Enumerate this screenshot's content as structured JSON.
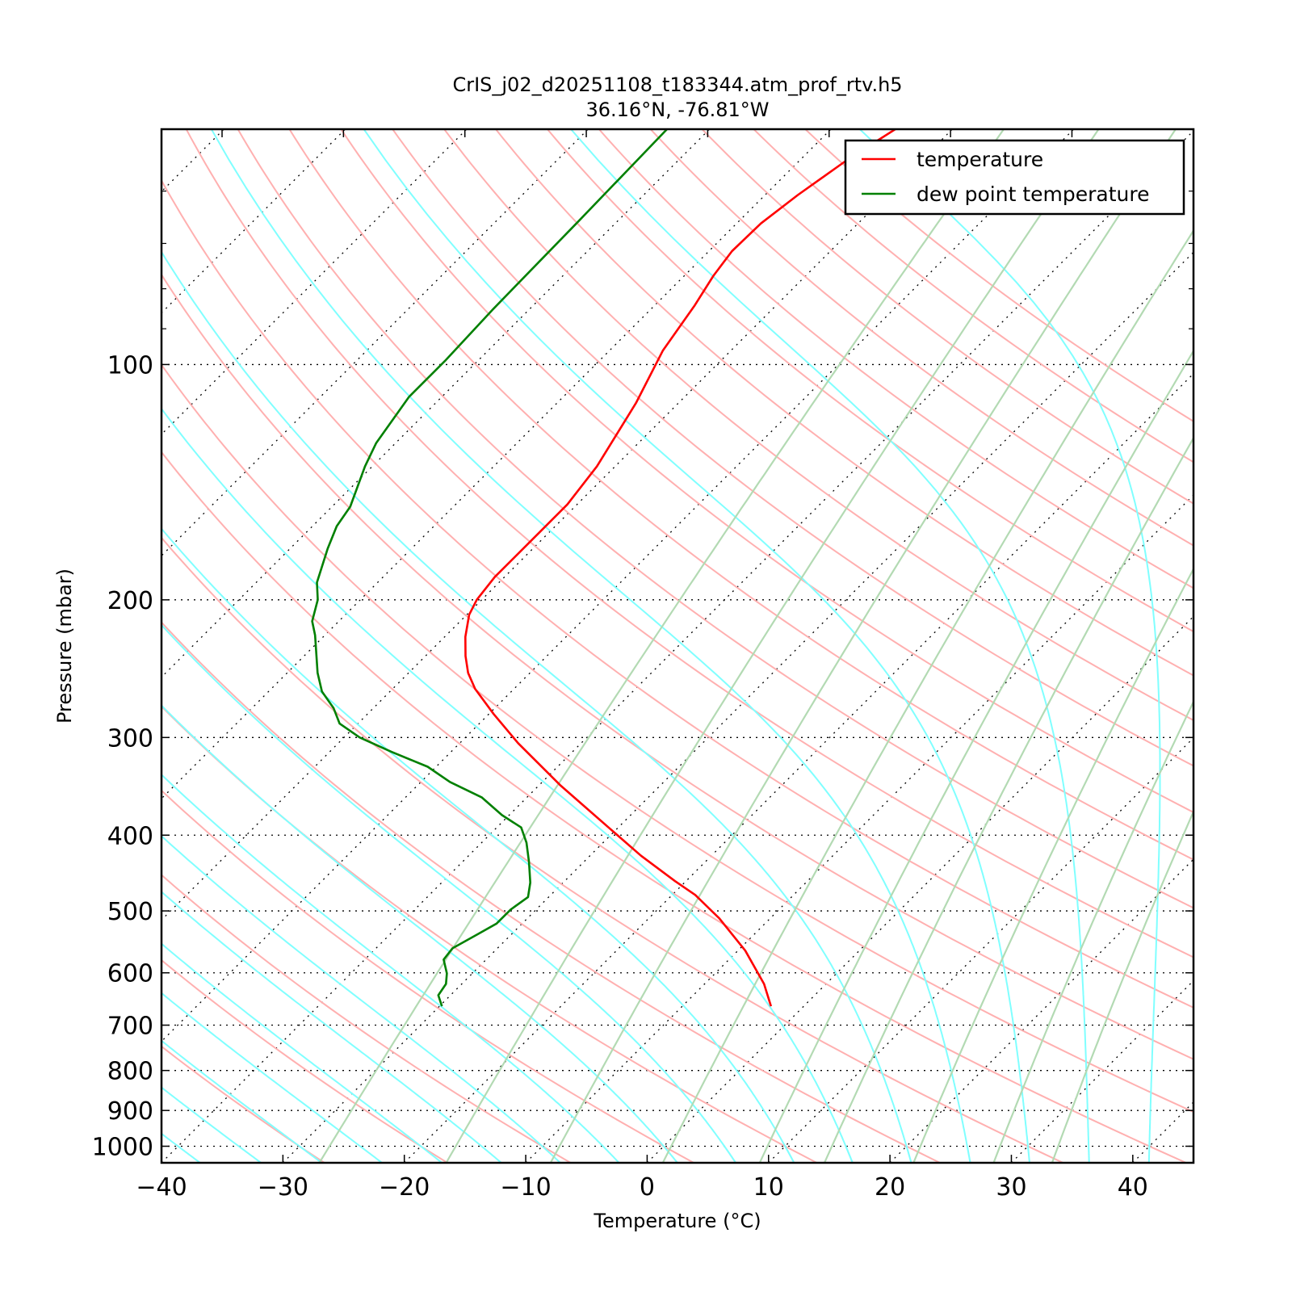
{
  "chart_data": {
    "type": "line",
    "subtype": "skew-t log-p diagram",
    "title": "CrIS_j02_d20251108_t183344.atm_prof_rtv.h5",
    "subtitle": "36.16°N, -76.81°W",
    "xlabel": "Temperature (°C)",
    "ylabel": "Pressure (mbar)",
    "xlim": [
      -40,
      45
    ],
    "ylim": [
      1050,
      50
    ],
    "yscale": "log",
    "skew_deg": 45,
    "x_ticks": [
      -40,
      -30,
      -20,
      -10,
      0,
      10,
      20,
      30,
      40
    ],
    "x_tick_labels": [
      "−40",
      "−30",
      "−20",
      "−10",
      "0",
      "10",
      "20",
      "30",
      "40"
    ],
    "y_ticks": [
      100,
      200,
      300,
      400,
      500,
      600,
      700,
      800,
      900,
      1000
    ],
    "y_tick_labels": [
      "100",
      "200",
      "300",
      "400",
      "500",
      "600",
      "700",
      "800",
      "900",
      "1000"
    ],
    "y_minor_ticks": [
      60,
      70,
      80,
      90
    ],
    "legend": {
      "placement": "top-right",
      "entries": [
        {
          "label": "temperature",
          "color": "#ff0000"
        },
        {
          "label": "dew point temperature",
          "color": "#008000"
        }
      ]
    },
    "series": [
      {
        "name": "temperature",
        "color": "#ff0000",
        "pressure": [
          662,
          620,
          562,
          511,
          477,
          458,
          425,
          391,
          345,
          305,
          280,
          260,
          248,
          236,
          223,
          209,
          200,
          187,
          164,
          151,
          135,
          112,
          96,
          84,
          77,
          71.6,
          66,
          60.7,
          54.6,
          49.7
        ],
        "values": [
          -2.7,
          -5.1,
          -9.4,
          -14.2,
          -18.1,
          -20.9,
          -25.8,
          -30.8,
          -38.3,
          -45.2,
          -49.6,
          -53.2,
          -55.1,
          -56.7,
          -58.3,
          -59.8,
          -60.4,
          -60.8,
          -60.8,
          -60.8,
          -61.5,
          -63.5,
          -65.6,
          -66.7,
          -67.6,
          -68.1,
          -68.0,
          -67.3,
          -66.1,
          -64.6
        ]
      },
      {
        "name": "dew point temperature",
        "color": "#008000",
        "pressure": [
          662,
          641,
          620,
          601,
          577,
          558,
          536,
          519,
          498,
          480,
          460,
          433,
          409,
          391,
          377,
          358,
          342,
          327,
          313,
          300,
          288,
          275,
          262,
          248,
          222,
          213,
          200,
          190,
          172,
          161,
          152,
          135,
          126,
          110,
          99,
          85,
          66,
          50
        ],
        "values": [
          -29.8,
          -31.0,
          -31.3,
          -32.1,
          -33.5,
          -33.7,
          -32.8,
          -32.1,
          -32.1,
          -31.7,
          -32.7,
          -34.5,
          -36.3,
          -38.0,
          -40.6,
          -43.7,
          -47.6,
          -50.7,
          -54.9,
          -58.7,
          -61.5,
          -63.3,
          -65.6,
          -67.5,
          -70.8,
          -72.2,
          -73.5,
          -75.0,
          -76.9,
          -78.0,
          -78.5,
          -80.6,
          -81.6,
          -82.7,
          -82.7,
          -83.0,
          -83.2,
          -83.5
        ]
      }
    ],
    "reference_lines": {
      "dry_adiabats_color": "#ffb0b0",
      "moist_adiabats_color": "#80ffff",
      "mixing_ratio_color": "#b3dab3",
      "mixing_ratios": [
        0.0004,
        0.001,
        0.002,
        0.004,
        0.007,
        0.01,
        0.016,
        0.024,
        0.032
      ],
      "isobars": [
        100,
        200,
        300,
        400,
        500,
        600,
        700,
        800,
        900,
        1000
      ]
    }
  }
}
